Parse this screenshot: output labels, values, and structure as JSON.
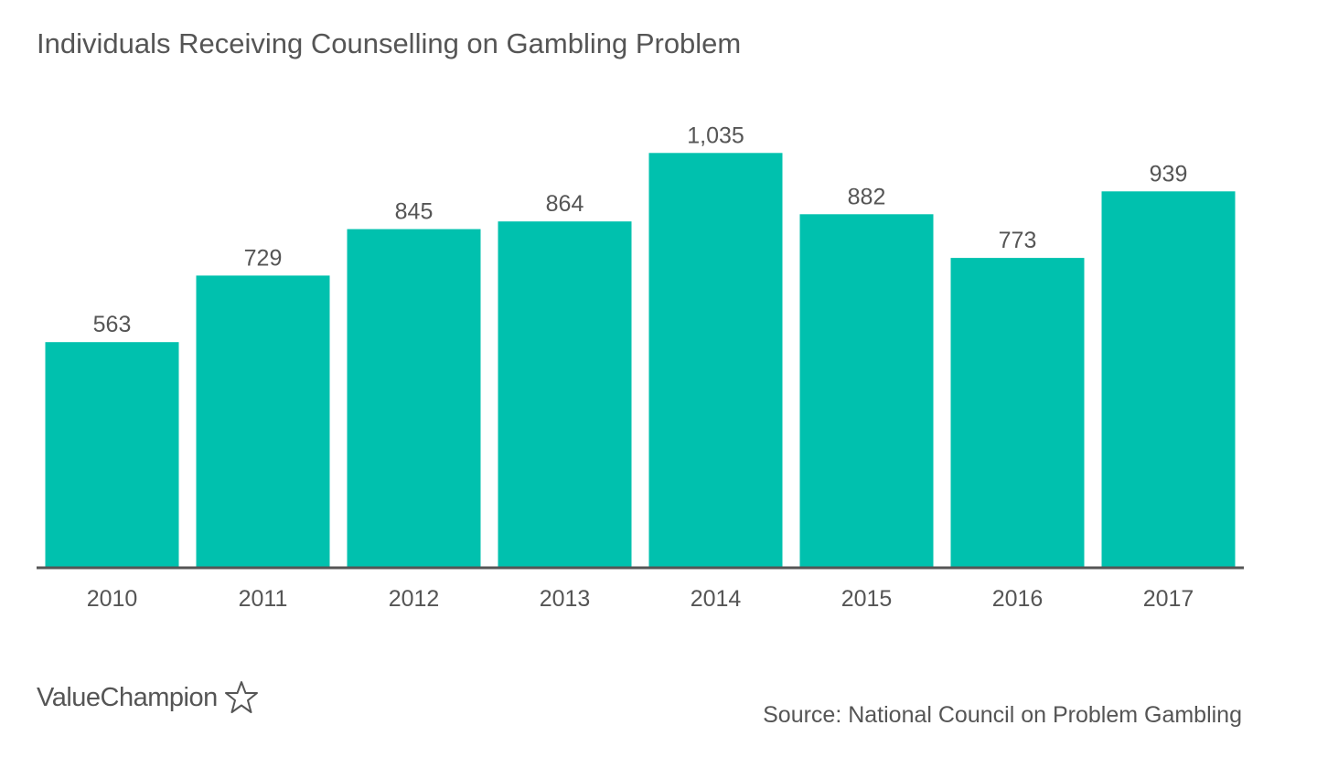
{
  "chart_data": {
    "type": "bar",
    "title": "Individuals Receiving Counselling on Gambling Problem",
    "categories": [
      "2010",
      "2011",
      "2012",
      "2013",
      "2014",
      "2015",
      "2016",
      "2017"
    ],
    "values": [
      563,
      729,
      845,
      864,
      1035,
      882,
      773,
      939
    ],
    "value_labels": [
      "563",
      "729",
      "845",
      "864",
      "1,035",
      "882",
      "773",
      "939"
    ],
    "xlabel": "",
    "ylabel": "",
    "ylim": [
      0,
      1120
    ],
    "grid": false,
    "bar_color": "#00c1ae",
    "axis_color": "#555555"
  },
  "footer": {
    "brand": "ValueChampion",
    "brand_icon": "star-outline-icon",
    "source": "Source: National Council on Problem Gambling"
  }
}
